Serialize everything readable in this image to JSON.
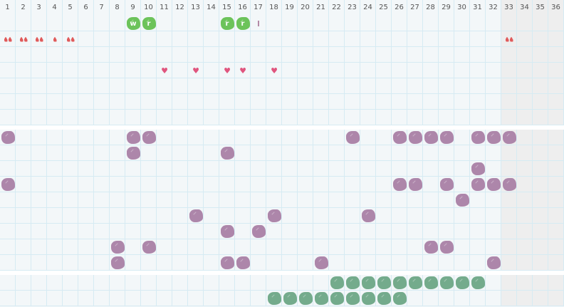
{
  "days": [
    "1",
    "2",
    "3",
    "4",
    "5",
    "6",
    "7",
    "8",
    "9",
    "10",
    "11",
    "12",
    "13",
    "14",
    "15",
    "16",
    "17",
    "18",
    "19",
    "20",
    "21",
    "22",
    "23",
    "24",
    "25",
    "26",
    "27",
    "28",
    "29",
    "30",
    "31",
    "32",
    "33",
    "34",
    "35",
    "36"
  ],
  "shaded_days_from": 33,
  "colors": {
    "green_blob": "#6cc35a",
    "purple_blob": "#ad86aa",
    "teal_blob": "#74ab8c",
    "drop": "#e05a5a",
    "heart": "#e0557e"
  },
  "sections": [
    {
      "rows": [
        {
          "marks": [
            {
              "day": 9,
              "type": "green-blob",
              "label": "w"
            },
            {
              "day": 10,
              "type": "green-blob",
              "label": "r"
            },
            {
              "day": 15,
              "type": "green-blob",
              "label": "r"
            },
            {
              "day": 16,
              "type": "green-blob",
              "label": "r"
            },
            {
              "day": 17,
              "type": "bar",
              "label": ""
            }
          ]
        },
        {
          "marks": [
            {
              "day": 1,
              "type": "drop",
              "count": 2
            },
            {
              "day": 2,
              "type": "drop",
              "count": 2
            },
            {
              "day": 3,
              "type": "drop",
              "count": 2
            },
            {
              "day": 4,
              "type": "drop",
              "count": 1
            },
            {
              "day": 5,
              "type": "drop",
              "count": 2
            },
            {
              "day": 33,
              "type": "drop",
              "count": 2
            }
          ]
        },
        {
          "marks": []
        },
        {
          "marks": [
            {
              "day": 11,
              "type": "heart"
            },
            {
              "day": 13,
              "type": "heart"
            },
            {
              "day": 15,
              "type": "heart"
            },
            {
              "day": 16,
              "type": "heart"
            },
            {
              "day": 18,
              "type": "heart"
            }
          ]
        },
        {
          "marks": []
        },
        {
          "marks": []
        },
        {
          "marks": []
        }
      ]
    },
    {
      "rows": [
        {
          "blobs": [
            1,
            9,
            10,
            23,
            26,
            27,
            28,
            29,
            31,
            32,
            33
          ]
        },
        {
          "blobs": [
            9,
            15
          ]
        },
        {
          "blobs": [
            31
          ]
        },
        {
          "blobs": [
            1,
            26,
            27,
            29,
            31,
            32,
            33
          ]
        },
        {
          "blobs": [
            30
          ]
        },
        {
          "blobs": [
            13,
            18,
            24
          ]
        },
        {
          "blobs": [
            15,
            17
          ]
        },
        {
          "blobs": [
            8,
            10,
            28,
            29
          ]
        },
        {
          "blobs": [
            8,
            15,
            16,
            21,
            32
          ]
        }
      ]
    },
    {
      "rows": [
        {
          "blobs": [
            22,
            23,
            24,
            25,
            26,
            27,
            28,
            29,
            30,
            31
          ]
        },
        {
          "blobs": [
            18,
            19,
            20,
            21,
            22,
            23,
            24,
            25,
            26
          ]
        }
      ]
    }
  ]
}
